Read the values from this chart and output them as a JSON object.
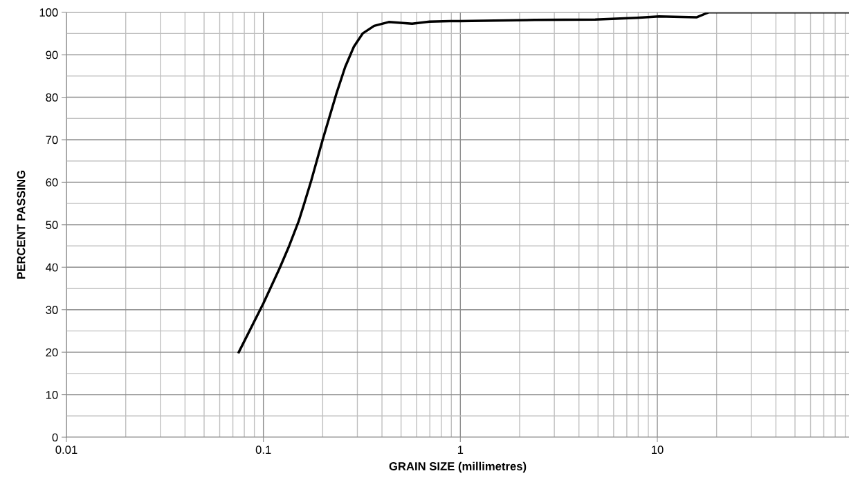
{
  "chart_data": {
    "type": "line",
    "xlabel": "GRAIN SIZE (millimetres)",
    "ylabel": "PERCENT PASSING",
    "log": "x",
    "x": [
      0.075,
      0.1,
      0.121,
      0.134,
      0.151,
      0.161,
      0.175,
      0.2,
      0.235,
      0.26,
      0.288,
      0.319,
      0.365,
      0.433,
      0.569,
      0.698,
      0.885,
      1.0,
      2.38,
      4.84,
      7.87,
      10.2,
      13.2,
      15.8,
      18.3,
      94
    ],
    "series": [
      {
        "color": "#000000",
        "values": [
          20.0,
          31.5,
          39.8,
          44.6,
          50.8,
          54.9,
          60.4,
          70.0,
          80.9,
          87.1,
          91.9,
          95.0,
          96.8,
          97.7,
          97.3,
          97.8,
          97.9,
          97.9,
          98.2,
          98.3,
          98.7,
          99.0,
          98.9,
          98.8,
          100,
          100
        ]
      }
    ],
    "xlim": [
      0.01,
      94
    ],
    "xticks": [
      0.01,
      0.1,
      1,
      10
    ],
    "ylim": [
      0,
      100
    ],
    "yticks": [
      0,
      10,
      20,
      30,
      40,
      50,
      60,
      70,
      80,
      90,
      100
    ],
    "grid": true,
    "marker": "none",
    "line_style": "solid"
  }
}
